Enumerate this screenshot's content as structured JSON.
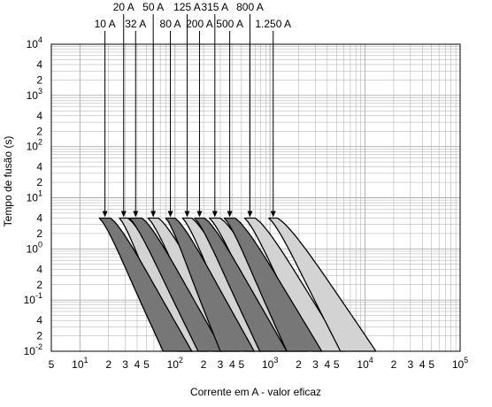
{
  "chart_data": {
    "type": "area",
    "xlabel": "Corrente em A - valor eficaz",
    "ylabel": "Tempo de fusão (s)",
    "x_scale": "log",
    "y_scale": "log",
    "xlim": [
      5,
      100000
    ],
    "ylim": [
      0.01,
      10000
    ],
    "grid": true,
    "x_ticks": [
      {
        "label": "5",
        "exp": ""
      },
      {
        "label": "10",
        "exp": "1"
      },
      {
        "label": "2",
        "exp": ""
      },
      {
        "label": "3",
        "exp": ""
      },
      {
        "label": "4",
        "exp": ""
      },
      {
        "label": "5",
        "exp": ""
      },
      {
        "label": "10",
        "exp": "2"
      },
      {
        "label": "2",
        "exp": ""
      },
      {
        "label": "3",
        "exp": ""
      },
      {
        "label": "4",
        "exp": ""
      },
      {
        "label": "5",
        "exp": ""
      },
      {
        "label": "10",
        "exp": "3"
      },
      {
        "label": "2",
        "exp": ""
      },
      {
        "label": "3",
        "exp": ""
      },
      {
        "label": "4",
        "exp": ""
      },
      {
        "label": "5",
        "exp": ""
      },
      {
        "label": "10",
        "exp": "4"
      },
      {
        "label": "2",
        "exp": ""
      },
      {
        "label": "3",
        "exp": ""
      },
      {
        "label": "4",
        "exp": ""
      },
      {
        "label": "5",
        "exp": ""
      },
      {
        "label": "10",
        "exp": "5"
      }
    ],
    "y_ticks": [
      {
        "label": "10",
        "exp": "4"
      },
      {
        "label": "4",
        "exp": ""
      },
      {
        "label": "2",
        "exp": ""
      },
      {
        "label": "10",
        "exp": "3"
      },
      {
        "label": "4",
        "exp": ""
      },
      {
        "label": "2",
        "exp": ""
      },
      {
        "label": "10",
        "exp": "2"
      },
      {
        "label": "4",
        "exp": ""
      },
      {
        "label": "2",
        "exp": ""
      },
      {
        "label": "10",
        "exp": "1"
      },
      {
        "label": "4",
        "exp": ""
      },
      {
        "label": "2",
        "exp": ""
      },
      {
        "label": "10",
        "exp": "0"
      },
      {
        "label": "4",
        "exp": ""
      },
      {
        "label": "2",
        "exp": ""
      },
      {
        "label": "10",
        "exp": "-1"
      },
      {
        "label": "4",
        "exp": ""
      },
      {
        "label": "2",
        "exp": ""
      },
      {
        "label": "10",
        "exp": "-2"
      }
    ],
    "colors": {
      "dark_band": "#777777",
      "light_band": "#d3d3d3",
      "grid": "#aaaaaa"
    },
    "series": [
      {
        "name": "10 A",
        "shade": "dark",
        "i_min_at_4s": 16,
        "i_max_at_4s": 21,
        "i_min_at_0_01s": 75,
        "i_max_at_0_01s": 150
      },
      {
        "name": "20 A",
        "shade": "light",
        "i_min_at_4s": 26,
        "i_max_at_4s": 32,
        "i_min_at_0_01s": 105,
        "i_max_at_0_01s": 220
      },
      {
        "name": "32 A",
        "shade": "dark",
        "i_min_at_4s": 33,
        "i_max_at_4s": 45,
        "i_min_at_0_01s": 175,
        "i_max_at_0_01s": 320
      },
      {
        "name": "50 A",
        "shade": "light",
        "i_min_at_4s": 52,
        "i_max_at_4s": 67,
        "i_min_at_0_01s": 250,
        "i_max_at_0_01s": 480
      },
      {
        "name": "80 A",
        "shade": "dark",
        "i_min_at_4s": 80,
        "i_max_at_4s": 100,
        "i_min_at_0_01s": 300,
        "i_max_at_0_01s": 680
      },
      {
        "name": "125 A",
        "shade": "light",
        "i_min_at_4s": 120,
        "i_max_at_4s": 150,
        "i_min_at_0_01s": 530,
        "i_max_at_0_01s": 1100
      },
      {
        "name": "200 A",
        "shade": "dark",
        "i_min_at_4s": 160,
        "i_max_at_4s": 205,
        "i_min_at_0_01s": 780,
        "i_max_at_0_01s": 1500
      },
      {
        "name": "315 A",
        "shade": "light",
        "i_min_at_4s": 230,
        "i_max_at_4s": 300,
        "i_min_at_0_01s": 1200,
        "i_max_at_0_01s": 2500
      },
      {
        "name": "500 A",
        "shade": "dark",
        "i_min_at_4s": 330,
        "i_max_at_4s": 430,
        "i_min_at_0_01s": 1500,
        "i_max_at_0_01s": 3500
      },
      {
        "name": "800 A",
        "shade": "light",
        "i_min_at_4s": 540,
        "i_max_at_4s": 700,
        "i_min_at_0_01s": 2800,
        "i_max_at_0_01s": 6000
      },
      {
        "name": "1.250 A",
        "shade": "light",
        "i_min_at_4s": 970,
        "i_max_at_4s": 1200,
        "i_min_at_0_01s": 5500,
        "i_max_at_0_01s": 13000
      }
    ]
  }
}
